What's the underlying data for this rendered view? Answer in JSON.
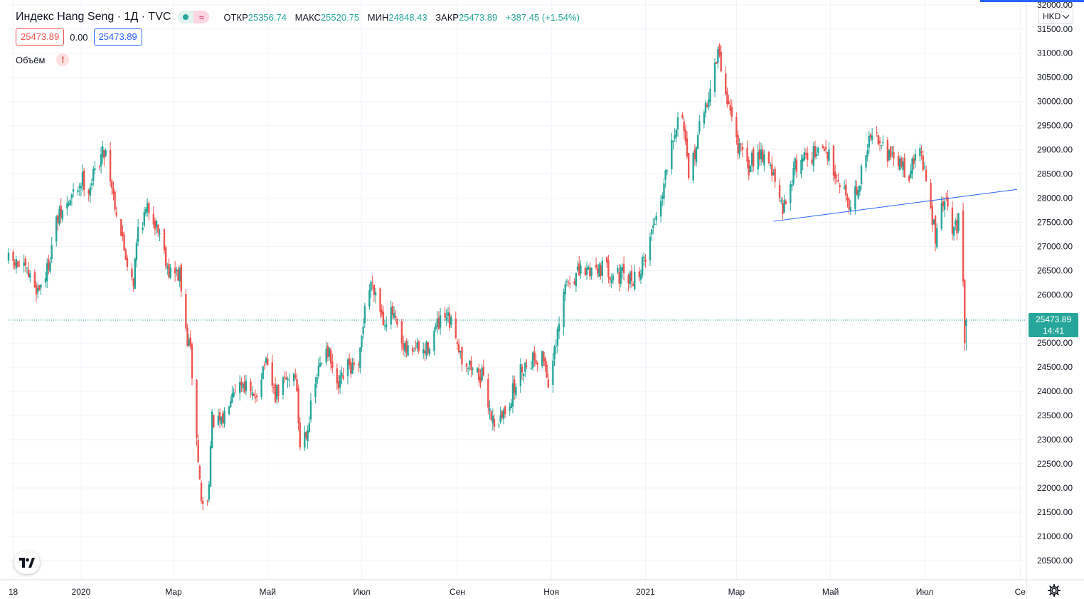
{
  "legend": {
    "title": "Индекс Hang Seng · 1Д · TVC",
    "status_icon": "live-dot-icon",
    "approx_symbol": "≈",
    "open_label": "ОТКР",
    "open_value": "25356.74",
    "high_label": "МАКС",
    "high_value": "25520.75",
    "low_label": "МИН",
    "low_value": "24848.43",
    "close_label": "ЗАКР",
    "close_value": "25473.89",
    "change": "+387.45 (+1.54%)"
  },
  "price_boxes": {
    "bid": "25473.89",
    "spread": "0.00",
    "ask": "25473.89"
  },
  "volume": {
    "label": "Объём",
    "warning_icon": "!"
  },
  "currency": {
    "label": "HKD"
  },
  "last_price": {
    "value": "25473.89",
    "countdown": "14:41"
  },
  "colors": {
    "up": "#26a69a",
    "down": "#ef5350",
    "trendline": "#2962ff",
    "grid": "#f0f3fa"
  },
  "chart_data": {
    "type": "candlestick",
    "title": "",
    "interval": "1D",
    "currency": "HKD",
    "y_ticks": [
      20500,
      21000,
      21500,
      22000,
      22500,
      23000,
      23500,
      24000,
      24500,
      25000,
      25500,
      26000,
      26500,
      27000,
      27500,
      28000,
      28500,
      29000,
      29500,
      30000,
      30500,
      31000,
      31500,
      32000
    ],
    "y_tick_labels": [
      "20500.00",
      "21000.00",
      "21500.00",
      "22000.00",
      "22500.00",
      "23000.00",
      "23500.00",
      "24000.00",
      "24500.00",
      "25000.00",
      "25500.00",
      "26000.00",
      "26500.00",
      "27000.00",
      "27500.00",
      "28000.00",
      "28500.00",
      "29000.00",
      "29500.00",
      "30000.00",
      "30500.00",
      "31000.00",
      "31500.00",
      "32000.00"
    ],
    "ylim": [
      20100,
      32100
    ],
    "x_axis": {
      "start": "2019-11-15",
      "end": "2021-09-05",
      "labels": [
        {
          "date": "2019-11-18",
          "label": "18"
        },
        {
          "date": "2020-01-01",
          "label": "2020"
        },
        {
          "date": "2020-03-01",
          "label": "Мар"
        },
        {
          "date": "2020-05-01",
          "label": "Май"
        },
        {
          "date": "2020-07-01",
          "label": "Июл"
        },
        {
          "date": "2020-09-01",
          "label": "Сен"
        },
        {
          "date": "2020-11-01",
          "label": "Ноя"
        },
        {
          "date": "2021-01-01",
          "label": "2021"
        },
        {
          "date": "2021-03-01",
          "label": "Мар"
        },
        {
          "date": "2021-05-01",
          "label": "Май"
        },
        {
          "date": "2021-07-01",
          "label": "Июл"
        },
        {
          "date": "2021-09-01",
          "label": "Се"
        }
      ]
    },
    "price_anchors": [
      {
        "date": "2019-11-15",
        "close": 26700
      },
      {
        "date": "2019-11-22",
        "close": 26600
      },
      {
        "date": "2019-11-28",
        "close": 26400
      },
      {
        "date": "2019-12-04",
        "close": 26100
      },
      {
        "date": "2019-12-10",
        "close": 26500
      },
      {
        "date": "2019-12-16",
        "close": 27500
      },
      {
        "date": "2019-12-24",
        "close": 27900
      },
      {
        "date": "2020-01-02",
        "close": 28400
      },
      {
        "date": "2020-01-06",
        "close": 28200
      },
      {
        "date": "2020-01-14",
        "close": 28900
      },
      {
        "date": "2020-01-17",
        "close": 29000
      },
      {
        "date": "2020-01-23",
        "close": 27900
      },
      {
        "date": "2020-01-30",
        "close": 26800
      },
      {
        "date": "2020-02-04",
        "close": 26300
      },
      {
        "date": "2020-02-07",
        "close": 27400
      },
      {
        "date": "2020-02-14",
        "close": 27800
      },
      {
        "date": "2020-02-21",
        "close": 27300
      },
      {
        "date": "2020-02-27",
        "close": 26500
      },
      {
        "date": "2020-03-05",
        "close": 26400
      },
      {
        "date": "2020-03-09",
        "close": 25200
      },
      {
        "date": "2020-03-12",
        "close": 24800
      },
      {
        "date": "2020-03-16",
        "close": 23000
      },
      {
        "date": "2020-03-19",
        "close": 21700
      },
      {
        "date": "2020-03-23",
        "close": 21700
      },
      {
        "date": "2020-03-26",
        "close": 23400
      },
      {
        "date": "2020-04-01",
        "close": 23300
      },
      {
        "date": "2020-04-08",
        "close": 24100
      },
      {
        "date": "2020-04-15",
        "close": 24200
      },
      {
        "date": "2020-04-22",
        "close": 23800
      },
      {
        "date": "2020-04-29",
        "close": 24600
      },
      {
        "date": "2020-05-06",
        "close": 23900
      },
      {
        "date": "2020-05-12",
        "close": 24200
      },
      {
        "date": "2020-05-19",
        "close": 24400
      },
      {
        "date": "2020-05-22",
        "close": 22900
      },
      {
        "date": "2020-05-27",
        "close": 23300
      },
      {
        "date": "2020-06-02",
        "close": 24300
      },
      {
        "date": "2020-06-08",
        "close": 25000
      },
      {
        "date": "2020-06-15",
        "close": 24000
      },
      {
        "date": "2020-06-22",
        "close": 24500
      },
      {
        "date": "2020-06-29",
        "close": 24400
      },
      {
        "date": "2020-07-03",
        "close": 25800
      },
      {
        "date": "2020-07-08",
        "close": 26300
      },
      {
        "date": "2020-07-15",
        "close": 25500
      },
      {
        "date": "2020-07-21",
        "close": 25600
      },
      {
        "date": "2020-07-28",
        "close": 24800
      },
      {
        "date": "2020-08-04",
        "close": 24900
      },
      {
        "date": "2020-08-11",
        "close": 24800
      },
      {
        "date": "2020-08-18",
        "close": 25300
      },
      {
        "date": "2020-08-25",
        "close": 25500
      },
      {
        "date": "2020-08-31",
        "close": 25200
      },
      {
        "date": "2020-09-04",
        "close": 24700
      },
      {
        "date": "2020-09-10",
        "close": 24500
      },
      {
        "date": "2020-09-17",
        "close": 24300
      },
      {
        "date": "2020-09-24",
        "close": 23400
      },
      {
        "date": "2020-09-29",
        "close": 23400
      },
      {
        "date": "2020-10-06",
        "close": 23900
      },
      {
        "date": "2020-10-13",
        "close": 24500
      },
      {
        "date": "2020-10-20",
        "close": 24700
      },
      {
        "date": "2020-10-27",
        "close": 24700
      },
      {
        "date": "2020-10-30",
        "close": 24200
      },
      {
        "date": "2020-11-04",
        "close": 24900
      },
      {
        "date": "2020-11-10",
        "close": 26200
      },
      {
        "date": "2020-11-17",
        "close": 26400
      },
      {
        "date": "2020-11-24",
        "close": 26500
      },
      {
        "date": "2020-12-01",
        "close": 26600
      },
      {
        "date": "2020-12-08",
        "close": 26500
      },
      {
        "date": "2020-12-15",
        "close": 26400
      },
      {
        "date": "2020-12-22",
        "close": 26300
      },
      {
        "date": "2020-12-29",
        "close": 26500
      },
      {
        "date": "2021-01-04",
        "close": 27200
      },
      {
        "date": "2021-01-11",
        "close": 28000
      },
      {
        "date": "2021-01-18",
        "close": 29300
      },
      {
        "date": "2021-01-25",
        "close": 29800
      },
      {
        "date": "2021-01-29",
        "close": 28300
      },
      {
        "date": "2021-02-04",
        "close": 29300
      },
      {
        "date": "2021-02-10",
        "close": 30000
      },
      {
        "date": "2021-02-17",
        "close": 31000
      },
      {
        "date": "2021-02-22",
        "close": 30200
      },
      {
        "date": "2021-02-25",
        "close": 29800
      },
      {
        "date": "2021-03-02",
        "close": 29100
      },
      {
        "date": "2021-03-08",
        "close": 28600
      },
      {
        "date": "2021-03-15",
        "close": 29000
      },
      {
        "date": "2021-03-22",
        "close": 28800
      },
      {
        "date": "2021-03-26",
        "close": 28300
      },
      {
        "date": "2021-03-31",
        "close": 27700
      },
      {
        "date": "2021-04-07",
        "close": 28600
      },
      {
        "date": "2021-04-14",
        "close": 28900
      },
      {
        "date": "2021-04-21",
        "close": 28900
      },
      {
        "date": "2021-04-28",
        "close": 29000
      },
      {
        "date": "2021-05-05",
        "close": 28500
      },
      {
        "date": "2021-05-12",
        "close": 28000
      },
      {
        "date": "2021-05-14",
        "close": 27900
      },
      {
        "date": "2021-05-19",
        "close": 28200
      },
      {
        "date": "2021-05-26",
        "close": 29200
      },
      {
        "date": "2021-06-02",
        "close": 29300
      },
      {
        "date": "2021-06-09",
        "close": 28800
      },
      {
        "date": "2021-06-16",
        "close": 28700
      },
      {
        "date": "2021-06-21",
        "close": 28500
      },
      {
        "date": "2021-06-28",
        "close": 29100
      },
      {
        "date": "2021-07-02",
        "close": 28300
      },
      {
        "date": "2021-07-08",
        "close": 27200
      },
      {
        "date": "2021-07-14",
        "close": 28000
      },
      {
        "date": "2021-07-19",
        "close": 27300
      },
      {
        "date": "2021-07-23",
        "close": 27500
      },
      {
        "date": "2021-07-26",
        "close": 26200
      },
      {
        "date": "2021-07-27",
        "close": 25100
      },
      {
        "date": "2021-07-28",
        "close": 25473.89
      }
    ],
    "last_bar": {
      "date": "2021-07-28",
      "open": 25356.74,
      "high": 25520.75,
      "low": 24848.43,
      "close": 25473.89
    },
    "trendline": {
      "from": {
        "date": "2021-03-25",
        "price": 27520
      },
      "to": {
        "date": "2021-08-30",
        "price": 28180
      }
    },
    "last_price_line": 25473.89,
    "grid": true
  }
}
